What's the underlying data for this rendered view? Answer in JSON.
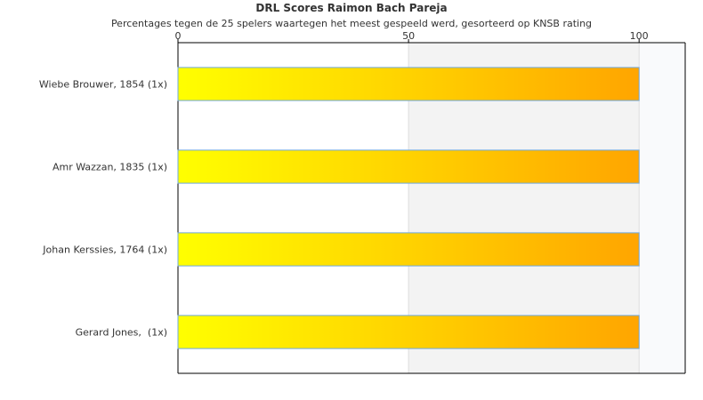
{
  "chart_data": {
    "type": "bar",
    "orientation": "horizontal",
    "title": "DRL Scores Raimon Bach Pareja",
    "subtitle": "Percentages tegen de 25 spelers waartegen het meest gespeeld werd, gesorteerd op KNSB rating",
    "categories": [
      "Wiebe Brouwer, 1854 (1x)",
      "Amr Wazzan, 1835 (1x)",
      "Johan Kerssies, 1764 (1x)",
      "Gerard Jones,  (1x)"
    ],
    "values": [
      100,
      100,
      100,
      100
    ],
    "xlim": [
      0,
      110
    ],
    "xticks": [
      0,
      50,
      100
    ],
    "xaxis_position": "top",
    "grid": true,
    "colors": {
      "bar_start": "#ffff00",
      "bar_end": "#ffa500",
      "bar_border": "#6fa8dc",
      "band_light": "#f3f3f3",
      "band_lighter": "#f9fafc"
    }
  }
}
